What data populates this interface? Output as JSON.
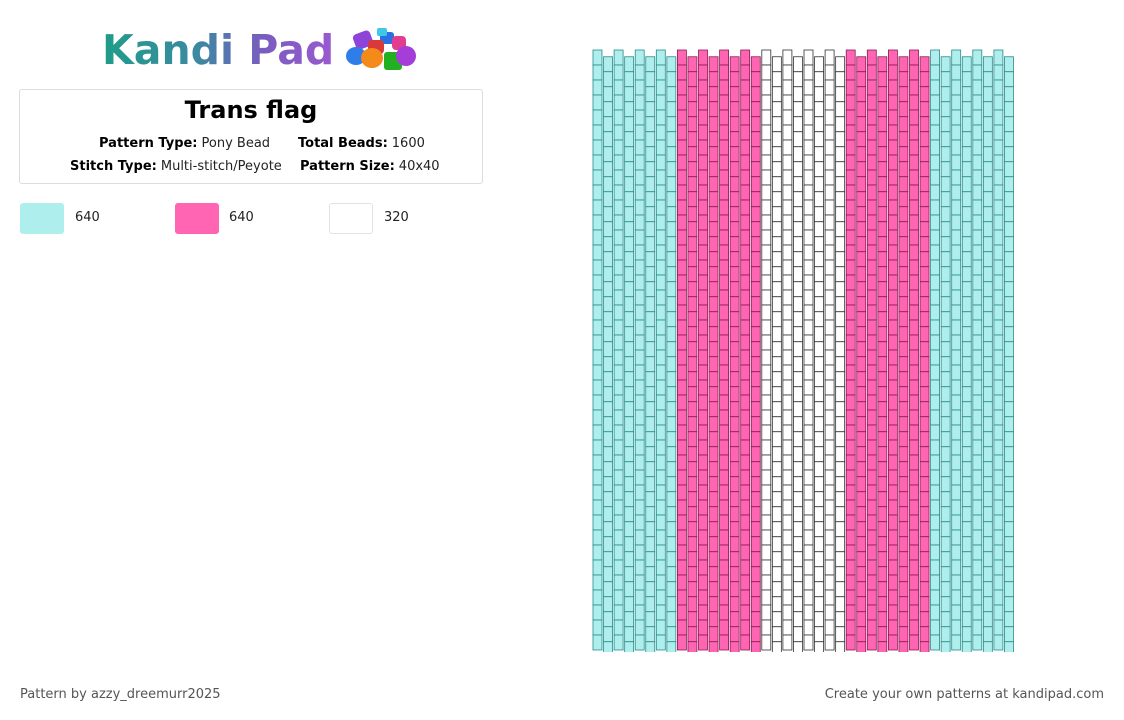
{
  "brand": {
    "name": "Kandi Pad",
    "logo_icon": "bead-pile-icon"
  },
  "pattern": {
    "title": "Trans flag",
    "type_label": "Pattern Type:",
    "type_value": "Pony Bead",
    "beads_label": "Total Beads:",
    "beads_value": "1600",
    "stitch_label": "Stitch Type:",
    "stitch_value": "Multi-stitch/Peyote",
    "size_label": "Pattern Size:",
    "size_value": "40x40"
  },
  "colors": [
    {
      "hex": "#aeeeed",
      "count": "640"
    },
    {
      "hex": "#ff65b3",
      "count": "640"
    },
    {
      "hex": "#ffffff",
      "count": "320"
    }
  ],
  "grid": {
    "columns": 40,
    "rows": 40,
    "column_colors": [
      0,
      0,
      0,
      0,
      0,
      0,
      0,
      0,
      1,
      1,
      1,
      1,
      1,
      1,
      1,
      1,
      2,
      2,
      2,
      2,
      2,
      2,
      2,
      2,
      1,
      1,
      1,
      1,
      1,
      1,
      1,
      1,
      0,
      0,
      0,
      0,
      0,
      0,
      0,
      0
    ],
    "outline_colors": [
      "#2a8a8a",
      "#8a1a52",
      "#333333"
    ]
  },
  "footer": {
    "credit": "Pattern by azzy_dreemurr2025",
    "promo": "Create your own patterns at kandipad.com"
  }
}
